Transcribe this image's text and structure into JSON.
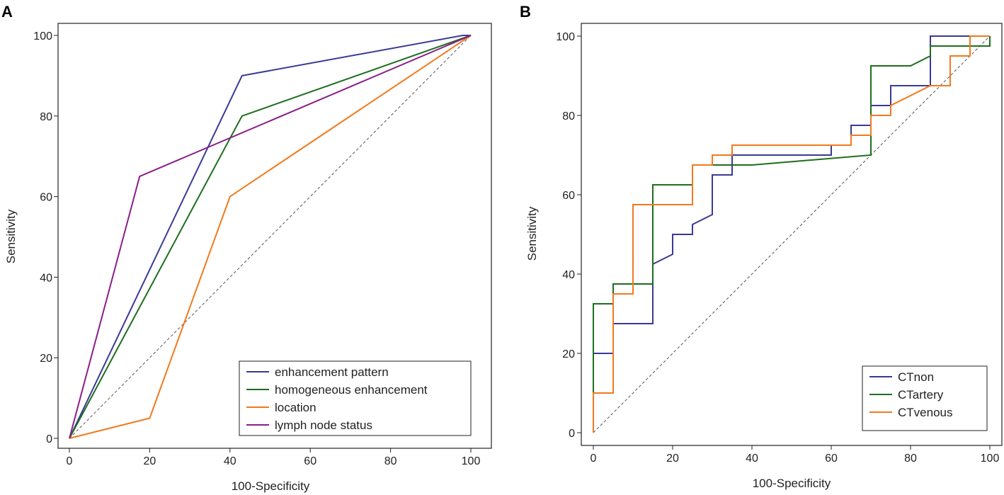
{
  "chart_data": [
    {
      "panel": "A",
      "type": "line",
      "title": "",
      "xlabel": "100-Specificity",
      "ylabel": "Sensitivity",
      "xlim": [
        0,
        100
      ],
      "ylim": [
        0,
        100
      ],
      "xticks": [
        "0",
        "20",
        "40",
        "60",
        "80",
        "100"
      ],
      "yticks": [
        "0",
        "20",
        "40",
        "60",
        "80",
        "100"
      ],
      "legend_position": "bottom-right",
      "series": [
        {
          "name": "enhancement pattern",
          "color": "#3a3a96",
          "x": [
            0,
            43,
            98,
            100
          ],
          "y": [
            0,
            90,
            100,
            100
          ]
        },
        {
          "name": "homogeneous enhancement",
          "color": "#1e6e1e",
          "x": [
            0,
            43,
            100
          ],
          "y": [
            0,
            80,
            100
          ]
        },
        {
          "name": "location",
          "color": "#f07a1e",
          "x": [
            0,
            20,
            40,
            100
          ],
          "y": [
            0,
            5,
            60,
            100
          ]
        },
        {
          "name": " lymph node status",
          "color": "#8a1e8a",
          "x": [
            0,
            17.5,
            100
          ],
          "y": [
            0,
            65,
            100
          ]
        }
      ]
    },
    {
      "panel": "B",
      "type": "line",
      "title": "",
      "xlabel": "100-Specificity",
      "ylabel": "Sensitivity",
      "xlim": [
        0,
        100
      ],
      "ylim": [
        0,
        100
      ],
      "xticks": [
        "0",
        "20",
        "40",
        "60",
        "80",
        "100"
      ],
      "yticks": [
        "0",
        "20",
        "40",
        "60",
        "80",
        "100"
      ],
      "legend_position": "bottom-right",
      "series": [
        {
          "name": "CTnon",
          "color": "#3a3a96",
          "x": [
            0,
            0,
            5,
            5,
            15,
            15,
            20,
            20,
            25,
            25,
            30,
            30,
            35,
            35,
            60,
            60,
            65,
            65,
            70,
            70,
            75,
            75,
            85,
            85,
            95,
            95,
            100
          ],
          "y": [
            0,
            20,
            20,
            27.5,
            27.5,
            42.5,
            45,
            50,
            50,
            52.5,
            55,
            65,
            65,
            70,
            70,
            72.5,
            72.5,
            77.5,
            77.5,
            82.5,
            82.5,
            87.5,
            87.5,
            100,
            100,
            100,
            100
          ]
        },
        {
          "name": "CTartery",
          "color": "#1e6e1e",
          "x": [
            0,
            0,
            5,
            5,
            15,
            15,
            25,
            25,
            30,
            40,
            70,
            70,
            80,
            85,
            85,
            100,
            100
          ],
          "y": [
            0,
            32.5,
            32.5,
            37.5,
            37.5,
            62.5,
            62.5,
            67.5,
            67.5,
            67.5,
            70,
            92.5,
            92.5,
            95,
            97.5,
            97.5,
            100
          ]
        },
        {
          "name": "CTvenous",
          "color": "#f07a1e",
          "x": [
            0,
            0,
            5,
            5,
            10,
            10,
            25,
            25,
            30,
            30,
            35,
            35,
            65,
            65,
            70,
            70,
            75,
            75,
            85,
            90,
            90,
            95,
            95,
            100
          ],
          "y": [
            0,
            10,
            10,
            35,
            35,
            57.5,
            57.5,
            67.5,
            67.5,
            70,
            70,
            72.5,
            72.5,
            75,
            75,
            80,
            80,
            82.5,
            87.5,
            87.5,
            95,
            95,
            100,
            100
          ]
        }
      ]
    }
  ]
}
